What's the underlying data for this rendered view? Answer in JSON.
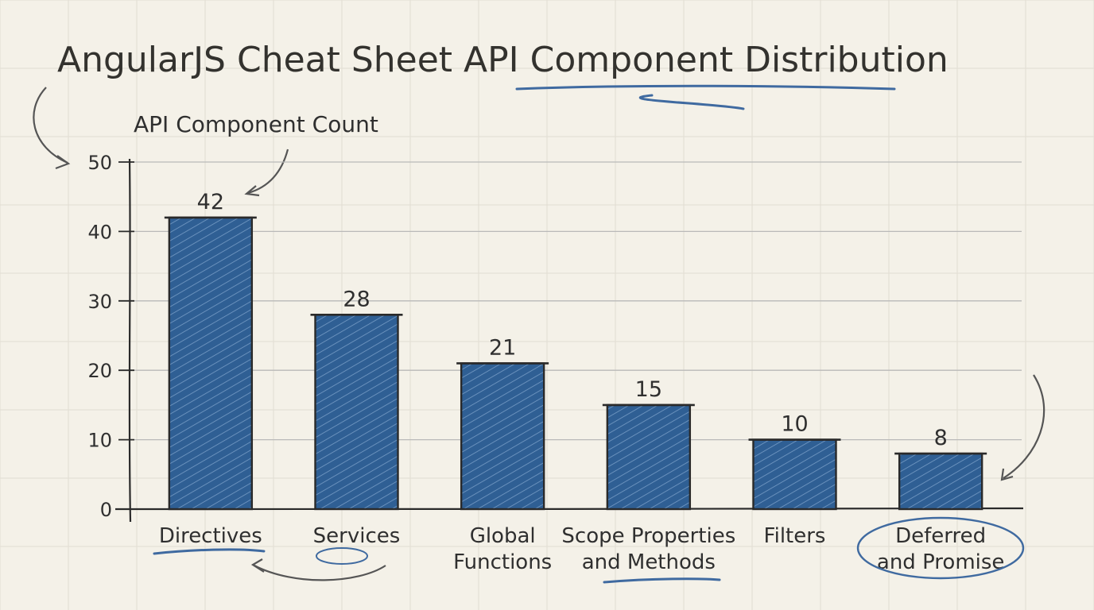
{
  "chart_data": {
    "type": "bar",
    "title": "AngularJS Cheat Sheet API Component Distribution",
    "xlabel": "",
    "ylabel": "API Component Count",
    "categories": [
      [
        "Directives"
      ],
      [
        "Services"
      ],
      [
        "Global",
        "Functions"
      ],
      [
        "Scope Properties",
        "and Methods"
      ],
      [
        "Filters"
      ],
      [
        "Deferred",
        "and Promise"
      ]
    ],
    "values": [
      42,
      28,
      21,
      15,
      10,
      8
    ],
    "ylim": [
      0,
      50
    ],
    "yticks": [
      0,
      10,
      20,
      30,
      40,
      50
    ],
    "grid": true,
    "colors": {
      "bar": "#2f5f94",
      "hatch": "#8fb0d6",
      "outline": "#2a2a2a",
      "accent": "#3f6aa0",
      "grid": "#b9b9b9",
      "paper": "#f4f1e8"
    }
  }
}
